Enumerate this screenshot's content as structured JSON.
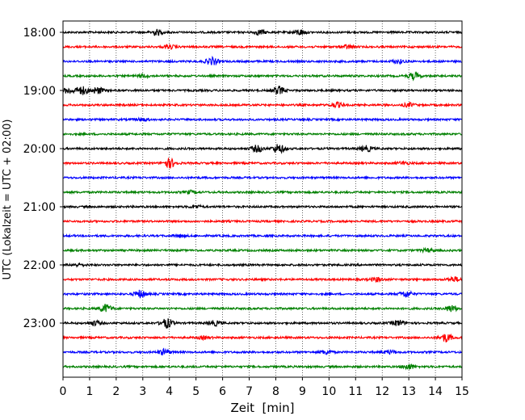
{
  "chart_data": {
    "type": "line",
    "title": "",
    "xlabel": "Zeit  [min]",
    "ylabel": "UTC (Lokalzeit = UTC + 02:00)",
    "xlim": [
      0,
      15
    ],
    "x_ticks": [
      "0",
      "1",
      "2",
      "3",
      "4",
      "5",
      "6",
      "7",
      "8",
      "9",
      "10",
      "11",
      "12",
      "13",
      "14",
      "15"
    ],
    "y_tick_labels": [
      "18:00",
      "19:00",
      "20:00",
      "21:00",
      "22:00",
      "23:00"
    ],
    "trace_interval_minutes": 15,
    "trace_color_cycle": [
      "#000000",
      "#ff0000",
      "#0000ff",
      "#008000"
    ],
    "vertical_gridlines": true,
    "grid_style": "dotted",
    "legend": "none",
    "traces": [
      {
        "start": "18:00",
        "color": "#000000",
        "events": [
          {
            "t": 3.5,
            "amp": 0.6
          },
          {
            "t": 7.4,
            "amp": 0.5
          },
          {
            "t": 8.9,
            "amp": 0.6
          }
        ]
      },
      {
        "start": "18:15",
        "color": "#ff0000",
        "events": [
          {
            "t": 4.0,
            "amp": 0.4
          },
          {
            "t": 10.7,
            "amp": 0.4
          }
        ]
      },
      {
        "start": "18:30",
        "color": "#0000ff",
        "events": [
          {
            "t": 5.6,
            "amp": 0.8
          },
          {
            "t": 12.6,
            "amp": 0.4
          }
        ]
      },
      {
        "start": "18:45",
        "color": "#008000",
        "events": [
          {
            "t": 3.0,
            "amp": 0.3
          },
          {
            "t": 13.2,
            "amp": 0.7
          }
        ]
      },
      {
        "start": "19:00",
        "color": "#000000",
        "events": [
          {
            "t": 0.2,
            "amp": 0.6
          },
          {
            "t": 0.7,
            "amp": 0.9
          },
          {
            "t": 1.3,
            "amp": 0.7
          },
          {
            "t": 8.1,
            "amp": 0.9
          }
        ]
      },
      {
        "start": "19:15",
        "color": "#ff0000",
        "events": [
          {
            "t": 10.3,
            "amp": 0.5
          },
          {
            "t": 13.0,
            "amp": 0.4
          }
        ]
      },
      {
        "start": "19:30",
        "color": "#0000ff",
        "events": [
          {
            "t": 3.0,
            "amp": 0.3
          }
        ]
      },
      {
        "start": "19:45",
        "color": "#008000",
        "events": []
      },
      {
        "start": "20:00",
        "color": "#000000",
        "events": [
          {
            "t": 7.3,
            "amp": 0.7
          },
          {
            "t": 8.1,
            "amp": 1.0
          },
          {
            "t": 11.4,
            "amp": 0.6
          }
        ]
      },
      {
        "start": "20:15",
        "color": "#ff0000",
        "events": [
          {
            "t": 4.0,
            "amp": 1.0
          },
          {
            "t": 12.8,
            "amp": 0.3
          }
        ]
      },
      {
        "start": "20:30",
        "color": "#0000ff",
        "events": []
      },
      {
        "start": "20:45",
        "color": "#008000",
        "events": [
          {
            "t": 4.8,
            "amp": 0.3
          }
        ]
      },
      {
        "start": "21:00",
        "color": "#000000",
        "events": [
          {
            "t": 5.0,
            "amp": 0.3
          }
        ]
      },
      {
        "start": "21:15",
        "color": "#ff0000",
        "events": []
      },
      {
        "start": "21:30",
        "color": "#0000ff",
        "events": [
          {
            "t": 4.4,
            "amp": 0.3
          }
        ]
      },
      {
        "start": "21:45",
        "color": "#008000",
        "events": [
          {
            "t": 13.7,
            "amp": 0.3
          }
        ]
      },
      {
        "start": "22:00",
        "color": "#000000",
        "events": [
          {
            "t": 0.6,
            "amp": 0.3
          }
        ]
      },
      {
        "start": "22:15",
        "color": "#ff0000",
        "events": [
          {
            "t": 11.8,
            "amp": 0.4
          },
          {
            "t": 14.7,
            "amp": 0.5
          }
        ]
      },
      {
        "start": "22:30",
        "color": "#0000ff",
        "events": [
          {
            "t": 2.9,
            "amp": 0.8
          },
          {
            "t": 12.9,
            "amp": 0.7
          }
        ]
      },
      {
        "start": "22:45",
        "color": "#008000",
        "events": [
          {
            "t": 1.6,
            "amp": 0.9
          },
          {
            "t": 14.6,
            "amp": 0.7
          }
        ]
      },
      {
        "start": "23:00",
        "color": "#000000",
        "events": [
          {
            "t": 1.2,
            "amp": 0.5
          },
          {
            "t": 3.9,
            "amp": 1.0
          },
          {
            "t": 5.7,
            "amp": 0.5
          },
          {
            "t": 12.6,
            "amp": 0.6
          }
        ]
      },
      {
        "start": "23:15",
        "color": "#ff0000",
        "events": [
          {
            "t": 5.3,
            "amp": 0.3
          },
          {
            "t": 14.4,
            "amp": 0.9
          }
        ]
      },
      {
        "start": "23:30",
        "color": "#0000ff",
        "events": [
          {
            "t": 3.8,
            "amp": 0.6
          },
          {
            "t": 9.9,
            "amp": 0.4
          },
          {
            "t": 12.3,
            "amp": 0.4
          }
        ]
      },
      {
        "start": "23:45",
        "color": "#008000",
        "events": [
          {
            "t": 13.0,
            "amp": 0.6
          }
        ]
      }
    ]
  }
}
